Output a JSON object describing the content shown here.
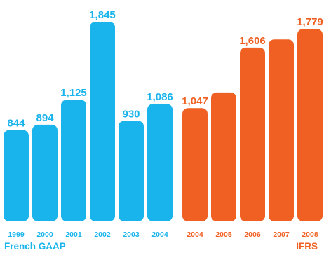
{
  "chart_data": {
    "type": "bar",
    "title": "",
    "xlabel": "",
    "ylabel": "",
    "ylim": [
      0,
      2000
    ],
    "grid": false,
    "legend": "none",
    "groups": [
      {
        "name": "French GAAP",
        "color": "#19b4ec",
        "categories": [
          "1999",
          "2000",
          "2001",
          "2002",
          "2003",
          "2004"
        ],
        "values": [
          844,
          894,
          1125,
          1845,
          930,
          1086
        ],
        "value_labels": [
          "844",
          "894",
          "1,125",
          "1,845",
          "930",
          "1,086"
        ]
      },
      {
        "name": "IFRS",
        "color": "#f06022",
        "categories": [
          "2004",
          "2005",
          "2006",
          "2007",
          "2008"
        ],
        "values": [
          1047,
          1192,
          1606,
          1681,
          1779
        ],
        "value_labels": [
          "1,047",
          "",
          "1,606",
          "",
          "1,779"
        ]
      }
    ]
  }
}
